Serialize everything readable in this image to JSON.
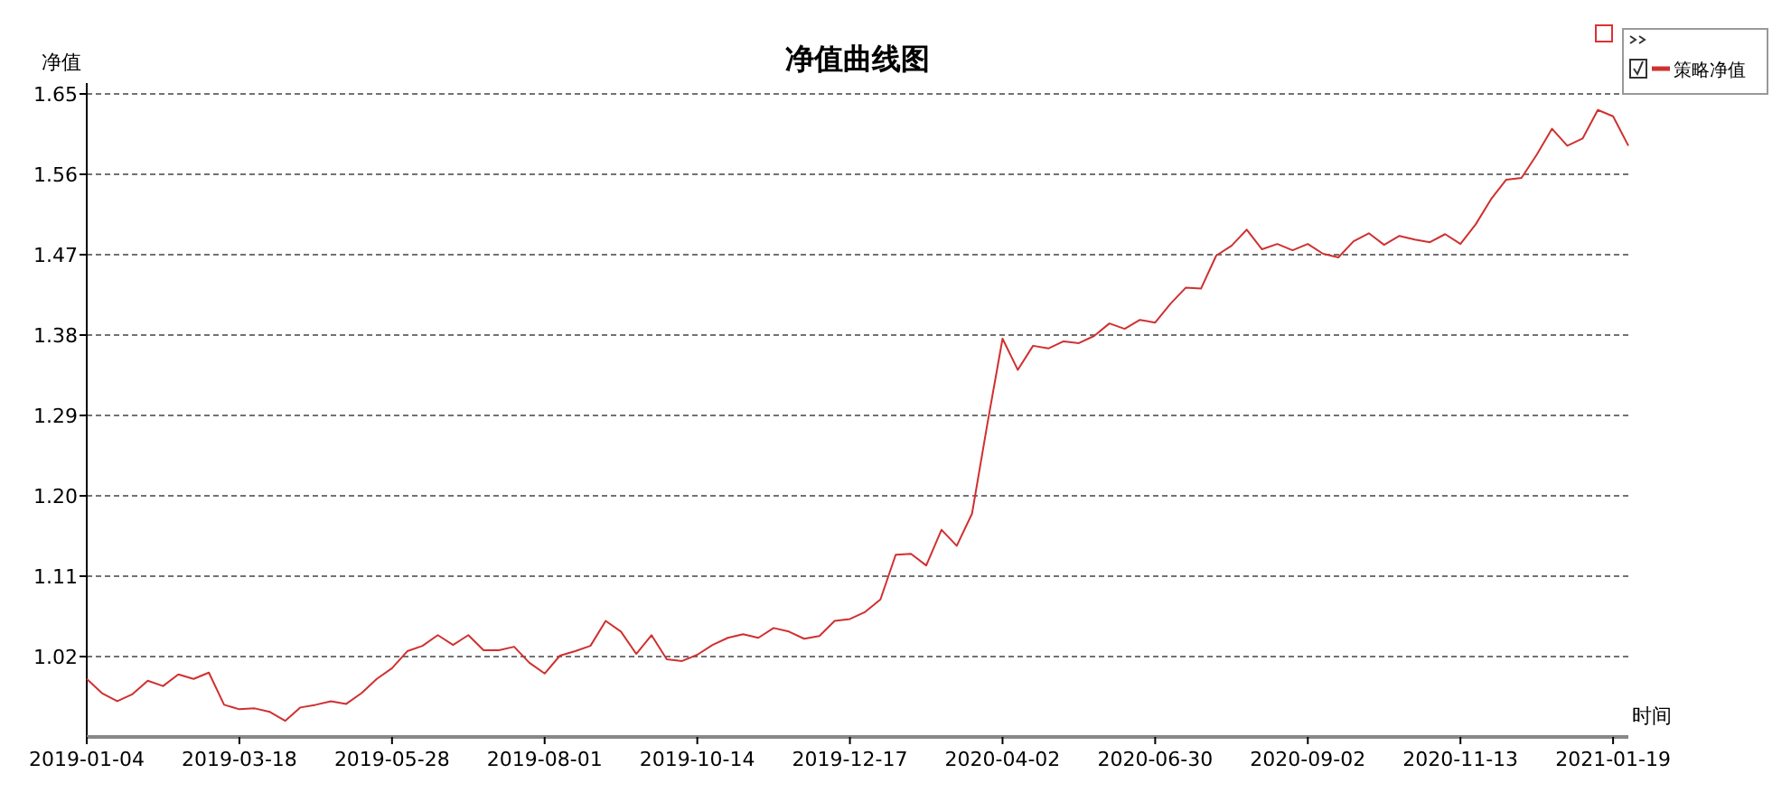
{
  "chart_data": {
    "type": "line",
    "title": "净值曲线图",
    "xlabel": "时间",
    "ylabel": "净值",
    "legend": "top right",
    "grid": "y",
    "line_style": "solid",
    "ylim": [
      0.93,
      1.65
    ],
    "yticks": [
      {
        "value": 1.02,
        "label": "1.02"
      },
      {
        "value": 1.11,
        "label": "1.11"
      },
      {
        "value": 1.2,
        "label": "1.20"
      },
      {
        "value": 1.29,
        "label": "1.29"
      },
      {
        "value": 1.38,
        "label": "1.38"
      },
      {
        "value": 1.47,
        "label": "1.47"
      },
      {
        "value": 1.56,
        "label": "1.56"
      },
      {
        "value": 1.65,
        "label": "1.65"
      }
    ],
    "categories": [
      "2019-01-04",
      null,
      null,
      null,
      null,
      null,
      null,
      null,
      null,
      null,
      "2019-03-18",
      null,
      null,
      null,
      null,
      null,
      null,
      null,
      null,
      null,
      "2019-05-28",
      null,
      null,
      null,
      null,
      null,
      null,
      null,
      null,
      null,
      "2019-08-01",
      null,
      null,
      null,
      null,
      null,
      null,
      null,
      null,
      null,
      "2019-10-14",
      null,
      null,
      null,
      null,
      null,
      null,
      null,
      null,
      null,
      "2019-12-17",
      null,
      null,
      null,
      null,
      null,
      null,
      null,
      null,
      null,
      "2020-04-02",
      null,
      null,
      null,
      null,
      null,
      null,
      null,
      null,
      null,
      "2020-06-30",
      null,
      null,
      null,
      null,
      null,
      null,
      null,
      null,
      null,
      "2020-09-02",
      null,
      null,
      null,
      null,
      null,
      null,
      null,
      null,
      null,
      "2020-11-13",
      null,
      null,
      null,
      null,
      null,
      null,
      null,
      null,
      null,
      "2021-01-19",
      null
    ],
    "series": [
      {
        "name": "策略净值",
        "color": "#d03030",
        "values": [
          0.995,
          0.979,
          0.97,
          0.978,
          0.993,
          0.987,
          1.0,
          0.995,
          1.002,
          0.966,
          0.961,
          0.962,
          0.958,
          0.948,
          0.963,
          0.966,
          0.97,
          0.967,
          0.979,
          0.995,
          1.007,
          1.026,
          1.032,
          1.044,
          1.033,
          1.044,
          1.027,
          1.027,
          1.031,
          1.013,
          1.001,
          1.021,
          1.026,
          1.032,
          1.06,
          1.048,
          1.023,
          1.044,
          1.017,
          1.015,
          1.022,
          1.033,
          1.041,
          1.045,
          1.041,
          1.052,
          1.048,
          1.04,
          1.043,
          1.06,
          1.062,
          1.07,
          1.084,
          1.134,
          1.135,
          1.122,
          1.162,
          1.144,
          1.18,
          1.28,
          1.376,
          1.341,
          1.368,
          1.365,
          1.373,
          1.371,
          1.379,
          1.393,
          1.387,
          1.397,
          1.394,
          1.415,
          1.433,
          1.432,
          1.469,
          1.48,
          1.498,
          1.476,
          1.482,
          1.475,
          1.482,
          1.471,
          1.467,
          1.485,
          1.494,
          1.481,
          1.491,
          1.487,
          1.484,
          1.493,
          1.482,
          1.504,
          1.532,
          1.554,
          1.556,
          1.582,
          1.611,
          1.592,
          1.6,
          1.632,
          1.625,
          1.592
        ]
      }
    ]
  }
}
